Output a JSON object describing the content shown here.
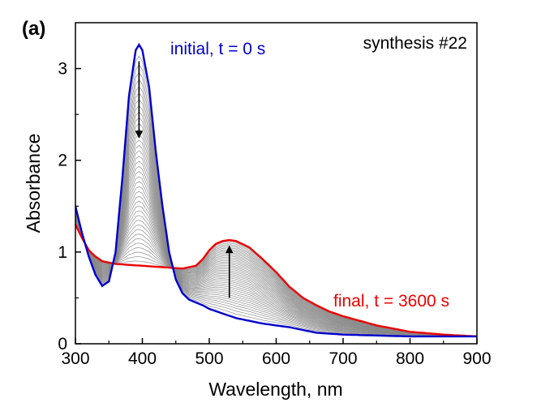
{
  "chart_data": {
    "type": "line",
    "panel_label": "(a)",
    "title": "synthesis #22",
    "xlabel": "Wavelength, nm",
    "ylabel": "Absorbance",
    "xlim": [
      300,
      900
    ],
    "ylim": [
      0,
      3.5
    ],
    "xticks": [
      300,
      400,
      500,
      600,
      700,
      800,
      900
    ],
    "yticks": [
      0,
      1,
      2,
      3
    ],
    "grid": false,
    "legend": "none",
    "series": [
      {
        "name": "initial, t = 0 s",
        "color": "#0000cc",
        "x": [
          300,
          310,
          320,
          330,
          340,
          350,
          360,
          370,
          380,
          390,
          395,
          400,
          410,
          420,
          430,
          440,
          450,
          460,
          470,
          480,
          490,
          500,
          520,
          540,
          560,
          580,
          600,
          620,
          640,
          660,
          700,
          800,
          900
        ],
        "y": [
          1.5,
          1.2,
          0.95,
          0.75,
          0.63,
          0.68,
          1.0,
          1.8,
          2.7,
          3.2,
          3.26,
          3.2,
          2.8,
          2.1,
          1.5,
          1.0,
          0.7,
          0.55,
          0.48,
          0.45,
          0.42,
          0.38,
          0.33,
          0.28,
          0.25,
          0.22,
          0.2,
          0.18,
          0.15,
          0.12,
          0.1,
          0.08,
          0.08
        ]
      },
      {
        "name": "final, t = 3600 s",
        "color": "#ee0000",
        "x": [
          300,
          310,
          320,
          330,
          340,
          360,
          380,
          400,
          420,
          440,
          460,
          480,
          490,
          500,
          510,
          520,
          530,
          540,
          560,
          580,
          600,
          620,
          640,
          660,
          680,
          700,
          750,
          800,
          850,
          900
        ],
        "y": [
          1.3,
          1.15,
          1.02,
          0.95,
          0.9,
          0.87,
          0.86,
          0.85,
          0.84,
          0.83,
          0.82,
          0.85,
          0.92,
          1.02,
          1.09,
          1.12,
          1.13,
          1.12,
          1.05,
          0.92,
          0.78,
          0.62,
          0.5,
          0.42,
          0.35,
          0.3,
          0.2,
          0.13,
          0.1,
          0.08
        ]
      }
    ],
    "intermediate_curves": {
      "color": "#888888",
      "count": 40
    },
    "annotations": [
      {
        "text": "initial, t = 0 s",
        "color": "#0000cc"
      },
      {
        "text": "final, t = 3600 s",
        "color": "#ee0000"
      },
      {
        "text": "synthesis #22",
        "color": "#000000"
      }
    ],
    "arrows": [
      {
        "direction": "down",
        "x": 395,
        "y_from": 3.08,
        "y_to": 2.28
      },
      {
        "direction": "up",
        "x": 530,
        "y_from": 0.5,
        "y_to": 1.03
      }
    ]
  }
}
